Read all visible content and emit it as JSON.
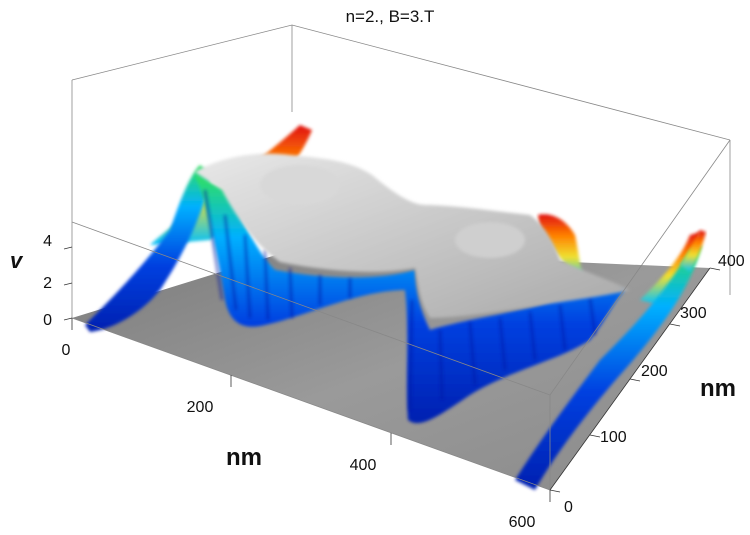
{
  "chart_data": {
    "type": "surface3d",
    "title": "n=2., B=3.T",
    "xlabel": "nm",
    "ylabel": "nm",
    "zlabel": "v",
    "xlim": [
      0,
      600
    ],
    "ylim": [
      0,
      400
    ],
    "zlim": [
      0,
      4
    ],
    "x_ticks": [
      "0",
      "200",
      "400",
      "600"
    ],
    "y_ticks": [
      "0",
      "100",
      "200",
      "300",
      "400"
    ],
    "z_ticks": [
      "0",
      "2",
      "4"
    ],
    "colormap": [
      "#0020c0",
      "#0050ff",
      "#00c0ff",
      "#30e060",
      "#f0e030",
      "#ff8000",
      "#e01010"
    ],
    "surface_color": "#a0a0a0",
    "background_plane": "#8a8a8a"
  }
}
